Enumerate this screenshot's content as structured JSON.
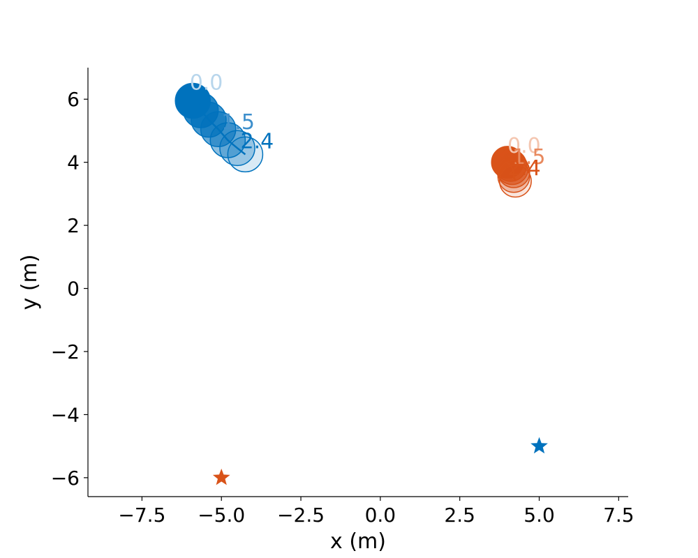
{
  "chart_data": {
    "type": "scatter",
    "xlabel": "x (m)",
    "ylabel": "y (m)",
    "xlim": [
      -9.2,
      7.8
    ],
    "ylim": [
      -6.6,
      7.0
    ],
    "xticks": [
      -7.5,
      -5.0,
      -2.5,
      0.0,
      2.5,
      5.0,
      7.5
    ],
    "yticks": [
      -6,
      -4,
      -2,
      0,
      2,
      4,
      6
    ],
    "xtick_labels": [
      "−7.5",
      "−5.0",
      "−2.5",
      "0.0",
      "2.5",
      "5.0",
      "7.5"
    ],
    "ytick_labels": [
      "−6",
      "−4",
      "−2",
      "0",
      "2",
      "4",
      "6"
    ],
    "grid": false,
    "series": [
      {
        "color": "#0072BD",
        "agent_radius": 0.55,
        "path": [
          {
            "x": -5.9,
            "y": 5.95
          },
          {
            "x": -5.65,
            "y": 5.65
          },
          {
            "x": -5.4,
            "y": 5.35
          },
          {
            "x": -5.1,
            "y": 5.05
          },
          {
            "x": -4.8,
            "y": 4.7
          },
          {
            "x": -4.5,
            "y": 4.45
          },
          {
            "x": -4.25,
            "y": 4.25
          }
        ],
        "fill_alphas": [
          1.0,
          0.85,
          0.72,
          0.6,
          0.45,
          0.3,
          0.15
        ],
        "time_labels": [
          {
            "text": "0.0",
            "x": -6.0,
            "y": 6.3,
            "color": "#b8d6ec"
          },
          {
            "text": "1.5",
            "x": -5.0,
            "y": 5.05,
            "color": "#3d8fcc"
          },
          {
            "text": "2.4",
            "x": -4.4,
            "y": 4.45,
            "color": "#0072BD"
          }
        ],
        "goal": {
          "x": 5.0,
          "y": -5.0
        }
      },
      {
        "color": "#D95319",
        "agent_radius": 0.5,
        "path": [
          {
            "x": 4.0,
            "y": 4.0
          },
          {
            "x": 4.1,
            "y": 3.9
          },
          {
            "x": 4.15,
            "y": 3.8
          },
          {
            "x": 4.2,
            "y": 3.7
          },
          {
            "x": 4.2,
            "y": 3.55
          },
          {
            "x": 4.25,
            "y": 3.4
          }
        ],
        "fill_alphas": [
          1.0,
          0.8,
          0.6,
          0.45,
          0.3,
          0.15
        ],
        "time_labels": [
          {
            "text": "0.0",
            "x": 4.0,
            "y": 4.3,
            "color": "#f4c6b0"
          },
          {
            "text": "1.5",
            "x": 4.15,
            "y": 3.95,
            "color": "#e8895e"
          },
          {
            "text": "2.4",
            "x": 4.0,
            "y": 3.6,
            "color": "#D95319"
          }
        ],
        "goal": {
          "x": -5.0,
          "y": -6.0
        }
      }
    ]
  }
}
